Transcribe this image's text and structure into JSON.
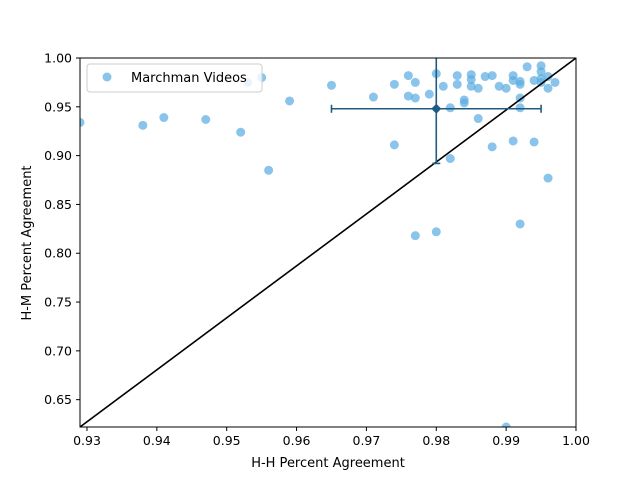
{
  "chart_data": {
    "type": "scatter",
    "xlabel": "H-H Percent Agreement",
    "ylabel": "H-M Percent Agreement",
    "xlim": [
      0.929,
      1.0
    ],
    "ylim": [
      0.622,
      1.0
    ],
    "xticks": [
      "0.93",
      "0.94",
      "0.95",
      "0.96",
      "0.97",
      "0.98",
      "0.99",
      "1.00"
    ],
    "xtick_values": [
      0.93,
      0.94,
      0.95,
      0.96,
      0.97,
      0.98,
      0.99,
      1.0
    ],
    "yticks": [
      "0.65",
      "0.70",
      "0.75",
      "0.80",
      "0.85",
      "0.90",
      "0.95",
      "1.00"
    ],
    "ytick_values": [
      0.65,
      0.7,
      0.75,
      0.8,
      0.85,
      0.9,
      0.95,
      1.0
    ],
    "legend": {
      "placement": "top-left",
      "entries": [
        "Marchman Videos"
      ]
    },
    "colors": {
      "points": "#5dade2",
      "summary": "#1f5b82",
      "diagonal": "#000000"
    },
    "series": [
      {
        "name": "Marchman Videos",
        "points": [
          [
            0.929,
            0.934
          ],
          [
            0.938,
            0.931
          ],
          [
            0.941,
            0.939
          ],
          [
            0.947,
            0.937
          ],
          [
            0.952,
            0.924
          ],
          [
            0.953,
            0.975
          ],
          [
            0.955,
            0.98
          ],
          [
            0.956,
            0.885
          ],
          [
            0.959,
            0.956
          ],
          [
            0.965,
            0.972
          ],
          [
            0.971,
            0.96
          ],
          [
            0.974,
            0.973
          ],
          [
            0.974,
            0.911
          ],
          [
            0.976,
            0.982
          ],
          [
            0.976,
            0.961
          ],
          [
            0.977,
            0.975
          ],
          [
            0.977,
            0.959
          ],
          [
            0.977,
            0.818
          ],
          [
            0.979,
            0.963
          ],
          [
            0.98,
            0.984
          ],
          [
            0.98,
            0.822
          ],
          [
            0.981,
            0.971
          ],
          [
            0.982,
            0.949
          ],
          [
            0.982,
            0.897
          ],
          [
            0.983,
            0.973
          ],
          [
            0.983,
            0.982
          ],
          [
            0.984,
            0.954
          ],
          [
            0.984,
            0.957
          ],
          [
            0.985,
            0.983
          ],
          [
            0.985,
            0.978
          ],
          [
            0.985,
            0.971
          ],
          [
            0.986,
            0.969
          ],
          [
            0.986,
            0.938
          ],
          [
            0.987,
            0.981
          ],
          [
            0.988,
            0.982
          ],
          [
            0.988,
            0.909
          ],
          [
            0.989,
            0.971
          ],
          [
            0.99,
            0.969
          ],
          [
            0.99,
            0.622
          ],
          [
            0.991,
            0.982
          ],
          [
            0.991,
            0.915
          ],
          [
            0.991,
            0.977
          ],
          [
            0.992,
            0.976
          ],
          [
            0.992,
            0.959
          ],
          [
            0.992,
            0.973
          ],
          [
            0.992,
            0.949
          ],
          [
            0.992,
            0.83
          ],
          [
            0.993,
            0.991
          ],
          [
            0.994,
            0.977
          ],
          [
            0.994,
            0.914
          ],
          [
            0.995,
            0.986
          ],
          [
            0.995,
            0.975
          ],
          [
            0.995,
            0.979
          ],
          [
            0.995,
            0.992
          ],
          [
            0.996,
            0.969
          ],
          [
            0.996,
            0.877
          ],
          [
            0.996,
            0.981
          ],
          [
            0.997,
            0.975
          ]
        ]
      }
    ],
    "summary_point": {
      "x": 0.98,
      "y": 0.948,
      "x_err": [
        0.965,
        0.995
      ],
      "y_err": [
        0.892,
        1.0
      ]
    },
    "diagonal": {
      "from": [
        0.929,
        0.622
      ],
      "to": [
        1.0,
        1.0
      ]
    }
  }
}
